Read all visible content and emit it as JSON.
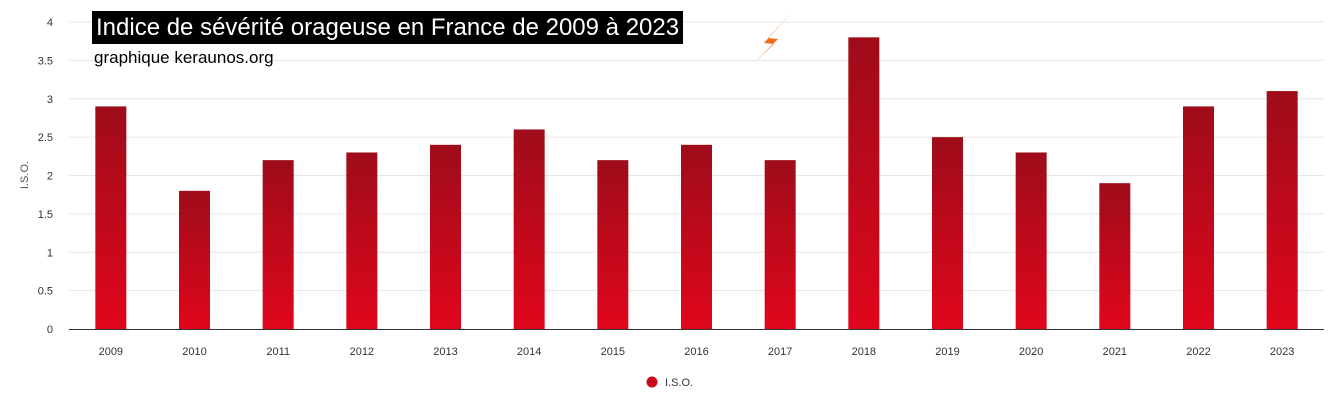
{
  "chart_data": {
    "type": "bar",
    "title": "Indice de sévérité orageuse en France de 2009 à 2023",
    "subtitle": "graphique keraunos.org",
    "ylabel": "I.S.O.",
    "xlabel": "",
    "categories": [
      "2009",
      "2010",
      "2011",
      "2012",
      "2013",
      "2014",
      "2015",
      "2016",
      "2017",
      "2018",
      "2019",
      "2020",
      "2021",
      "2022",
      "2023"
    ],
    "series": [
      {
        "name": "I.S.O.",
        "values": [
          2.9,
          1.8,
          2.2,
          2.3,
          2.4,
          2.6,
          2.2,
          2.4,
          2.2,
          3.8,
          2.5,
          2.3,
          1.9,
          2.9,
          3.1
        ]
      }
    ],
    "ylim": [
      0,
      4
    ],
    "yticks": [
      "0",
      "0.5",
      "1",
      "1.5",
      "2",
      "2.5",
      "3",
      "3.5",
      "4"
    ],
    "grid": true,
    "legend_position": "bottom-center",
    "colors": {
      "bar_top": "#9e0c1a",
      "bar_bottom": "#e0061c",
      "legend_marker": "#c8091b",
      "title_bg": "#000000",
      "title_text": "#ffffff",
      "bolt": "#f26a1b"
    },
    "logo_icon": "lightning-bolt-icon"
  }
}
